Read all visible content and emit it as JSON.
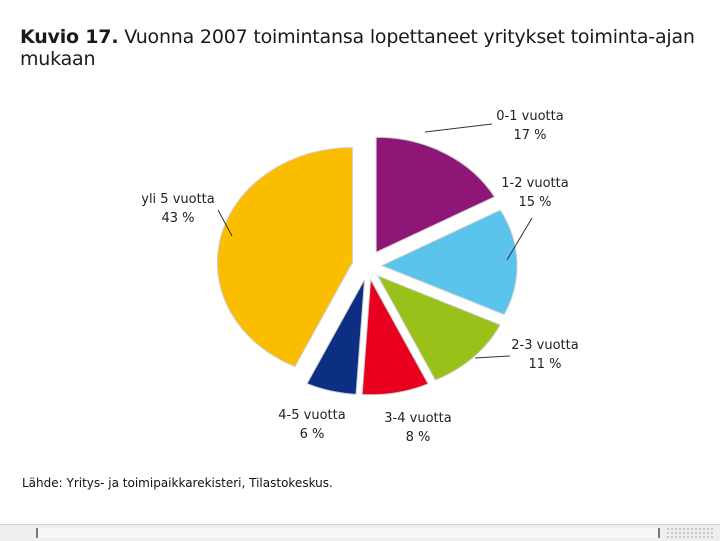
{
  "title": {
    "prefix": "Kuvio 17.",
    "text": "Vuonna 2007 toimintansa lopettaneet yritykset toiminta-ajan mukaan"
  },
  "source": "Lähde: Yritys- ja toimipaikkarekisteri, Tilastokeskus.",
  "chart_data": {
    "type": "pie",
    "start_angle_deg": 0,
    "direction": "clockwise",
    "slices": [
      {
        "label": "0-1 vuotta",
        "value": 17,
        "value_label": "17 %",
        "color": "#8e1677"
      },
      {
        "label": "1-2 vuotta",
        "value": 15,
        "value_label": "15 %",
        "color": "#5bc4ec"
      },
      {
        "label": "2-3 vuotta",
        "value": 11,
        "value_label": "11 %",
        "color": "#99c11a"
      },
      {
        "label": "3-4 vuotta",
        "value": 8,
        "value_label": "8 %",
        "color": "#e8001e"
      },
      {
        "label": "4-5 vuotta",
        "value": 6,
        "value_label": "6 %",
        "color": "#0c2f84"
      },
      {
        "label": "yli 5 vuotta",
        "value": 43,
        "value_label": "43 %",
        "color": "#fbbd00"
      }
    ]
  }
}
